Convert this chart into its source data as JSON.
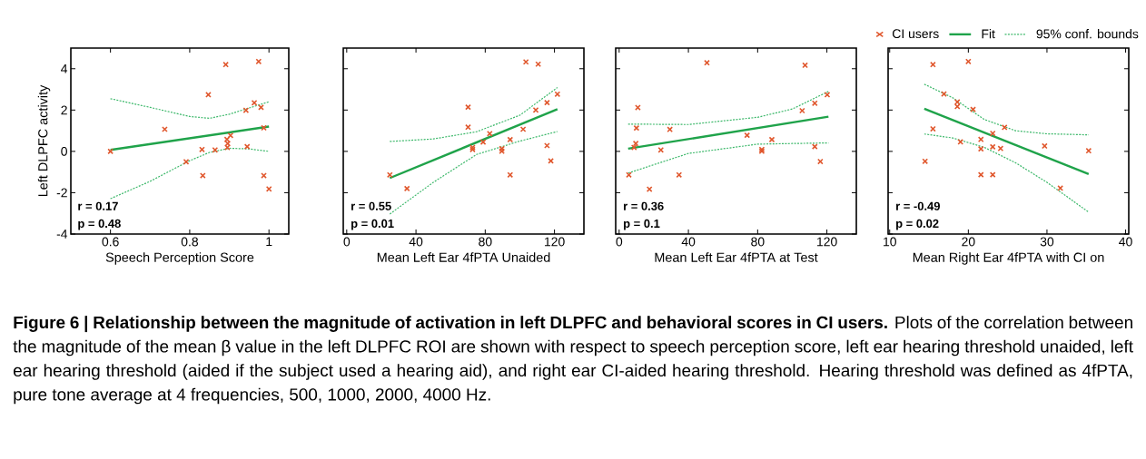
{
  "chart_data": [
    {
      "type": "scatter",
      "xlabel": "Speech Perception Score",
      "ylabel": "Left DLPFC activity",
      "xlim": [
        0.5,
        1.05
      ],
      "xticks": [
        0.6,
        0.8,
        1
      ],
      "ylim": [
        -4,
        5
      ],
      "yticks": [
        -4,
        -2,
        0,
        2,
        4
      ],
      "annotations": [
        "r = 0.17",
        "p = 0.48",
        "**Figure 6 | Relationship between the magnitude of activation in left DLPFC and behavioral scores in CI users.** Plots of the correlation between the magnitude of the mean β value in the left DLPFC ROI are shown with respect to speech perception score, left ear hearing threshold unaided, left ear hearing threshold (aided if the subject used a hearing aid), and right ear CI-aided hearing threshold. Hearing threshold was defined as 4fPTA, pure tone average at 4 frequencies, 500, 1000, 2000, 4000 Hz."
      ],
      "series": [
        {
          "marker": "cross",
          "color": "#e0572d",
          "x": [
            0.6,
            0.737,
            0.791,
            0.831,
            0.833,
            0.847,
            0.864,
            0.891,
            0.894,
            0.896,
            0.895,
            0.903,
            0.942,
            0.945,
            0.963,
            0.974,
            0.98,
            0.987,
            0.987,
            1.0
          ],
          "values": [
            0,
            1.07,
            -0.5,
            0.09,
            -1.17,
            2.74,
            0.07,
            4.2,
            0.58,
            0.38,
            0.19,
            0.77,
            1.99,
            0.23,
            2.35,
            4.35,
            2.13,
            1.14,
            -1.17,
            -1.82
          ]
        },
        {
          "type": "line",
          "marker": "none",
          "line_style": "solid",
          "color": "#1fa34a",
          "x": [
            0.6,
            1.0
          ],
          "values": [
            0.07,
            1.2
          ]
        },
        {
          "type": "line",
          "marker": "none",
          "line_style": "dotted",
          "color": "#3cb86a",
          "x": [
            0.6,
            0.7,
            0.8,
            0.85,
            0.9,
            0.95,
            1.0
          ],
          "values": [
            2.55,
            2.13,
            1.69,
            1.6,
            1.8,
            2.1,
            2.4
          ]
        },
        {
          "type": "line",
          "marker": "none",
          "line_style": "dotted",
          "color": "#3cb86a",
          "x": [
            0.6,
            0.7,
            0.8,
            0.85,
            0.9,
            0.95,
            1.0
          ],
          "values": [
            -2.29,
            -1.45,
            -0.45,
            -0.05,
            0.15,
            0.12,
            0.0
          ]
        }
      ]
    },
    {
      "type": "scatter",
      "xlabel": "Mean Left Ear 4fPTA Unaided",
      "xlim": [
        -2,
        137
      ],
      "xticks": [
        0,
        40,
        80,
        120
      ],
      "ylim": [
        -4,
        5
      ],
      "yticks": [
        -4,
        -2,
        0,
        2,
        4
      ],
      "tick_labels": "x",
      "annotations": [
        "r = 0.55",
        "p = 0.01"
      ],
      "series": [
        {
          "marker": "cross",
          "color": "#e0572d",
          "x": [
            24.9,
            34.8,
            70.1,
            70.1,
            72.7,
            72.7,
            78.8,
            82.6,
            89.6,
            89.6,
            94.4,
            94.4,
            101.9,
            103.5,
            109.2,
            110.6,
            115.7,
            115.7,
            117.9,
            121.7
          ],
          "values": [
            -1.14,
            -1.8,
            2.14,
            1.17,
            0.19,
            0.09,
            0.45,
            0.86,
            0.13,
            0.01,
            0.57,
            -1.14,
            1.07,
            4.33,
            2.0,
            4.22,
            2.36,
            0.28,
            -0.46,
            2.77
          ]
        },
        {
          "type": "line",
          "marker": "none",
          "line_style": "solid",
          "color": "#1fa34a",
          "x": [
            24.9,
            121.7
          ],
          "values": [
            -1.29,
            2.04
          ]
        },
        {
          "type": "line",
          "marker": "none",
          "line_style": "dotted",
          "color": "#3cb86a",
          "x": [
            24.9,
            50,
            75,
            100,
            121.7
          ],
          "values": [
            0.48,
            0.6,
            0.95,
            1.75,
            3.09
          ]
        },
        {
          "type": "line",
          "marker": "none",
          "line_style": "dotted",
          "color": "#3cb86a",
          "x": [
            24.9,
            50,
            75,
            100,
            121.7
          ],
          "values": [
            -3.03,
            -1.5,
            -0.15,
            0.5,
            0.96
          ]
        }
      ]
    },
    {
      "type": "scatter",
      "xlabel": "Mean Left Ear 4fPTA at Test",
      "xlim": [
        -2,
        137
      ],
      "xticks": [
        0,
        40,
        80,
        120
      ],
      "ylim": [
        -4,
        5
      ],
      "yticks": [
        -4,
        -2,
        0,
        2,
        4
      ],
      "tick_labels": "x",
      "annotations": [
        "r = 0.36",
        "p = 0.1"
      ],
      "series": [
        {
          "marker": "cross",
          "color": "#e0572d",
          "x": [
            5.6,
            8.6,
            9.6,
            10.0,
            10.8,
            17.5,
            24.1,
            29.3,
            34.6,
            50.7,
            73.9,
            82.4,
            82.4,
            88.2,
            105.7,
            107.4,
            113.0,
            113.0,
            116.2,
            120.2
          ],
          "values": [
            -1.14,
            0.19,
            0.38,
            1.13,
            2.12,
            -1.83,
            0.07,
            1.06,
            -1.14,
            4.29,
            0.78,
            0.09,
            0.01,
            0.57,
            1.97,
            4.17,
            2.33,
            0.23,
            -0.49,
            2.74
          ]
        },
        {
          "type": "line",
          "marker": "none",
          "line_style": "solid",
          "color": "#1fa34a",
          "x": [
            5.2,
            120.9
          ],
          "values": [
            0.13,
            1.68
          ]
        },
        {
          "type": "line",
          "marker": "none",
          "line_style": "dotted",
          "color": "#3cb86a",
          "x": [
            5.2,
            40,
            80,
            100,
            120.9
          ],
          "values": [
            1.32,
            1.3,
            1.65,
            2.05,
            2.9
          ]
        },
        {
          "type": "line",
          "marker": "none",
          "line_style": "dotted",
          "color": "#3cb86a",
          "x": [
            5.2,
            40,
            80,
            100,
            120.9
          ],
          "values": [
            -1.05,
            -0.1,
            0.35,
            0.38,
            0.41
          ]
        }
      ]
    },
    {
      "type": "scatter",
      "xlabel": "Mean Right Ear 4fPTA with CI on",
      "xlim": [
        9.8,
        40.4
      ],
      "xticks": [
        10,
        20,
        30,
        40
      ],
      "ylim": [
        -4,
        5
      ],
      "yticks": [
        -4,
        -2,
        0,
        2,
        4
      ],
      "tick_labels": "x",
      "legend": "top",
      "annotations": [
        "r = -0.49",
        "p = 0.02"
      ],
      "series": [
        {
          "name": "CI users",
          "marker": "cross",
          "color": "#e0572d",
          "x": [
            14.5,
            15.5,
            15.5,
            16.9,
            18.6,
            18.6,
            19.0,
            20.0,
            20.6,
            21.6,
            21.6,
            21.6,
            23.1,
            23.1,
            23.1,
            24.1,
            24.6,
            29.7,
            31.7,
            35.3
          ],
          "values": [
            -0.48,
            4.2,
            1.09,
            2.78,
            2.39,
            2.17,
            0.46,
            4.35,
            2.03,
            0.58,
            0.12,
            -1.13,
            0.87,
            0.22,
            -1.13,
            0.14,
            1.16,
            0.26,
            -1.78,
            0.03
          ]
        },
        {
          "name": "Fit",
          "type": "line",
          "marker": "none",
          "line_style": "solid",
          "color": "#1fa34a",
          "x": [
            14.4,
            35.3
          ],
          "values": [
            2.06,
            -1.1
          ]
        },
        {
          "name": "95% conf. bounds",
          "type": "line",
          "marker": "none",
          "line_style": "dotted",
          "color": "#3cb86a",
          "x": [
            14.4,
            18,
            22,
            26,
            30,
            35.3
          ],
          "values": [
            3.25,
            2.6,
            1.55,
            1.0,
            0.85,
            0.8
          ]
        },
        {
          "type": "line",
          "marker": "none",
          "line_style": "dotted",
          "color": "#3cb86a",
          "x": [
            14.4,
            18,
            22,
            26,
            30,
            35.3
          ],
          "values": [
            0.84,
            0.65,
            0.2,
            -0.55,
            -1.5,
            -2.94
          ]
        }
      ]
    }
  ]
}
